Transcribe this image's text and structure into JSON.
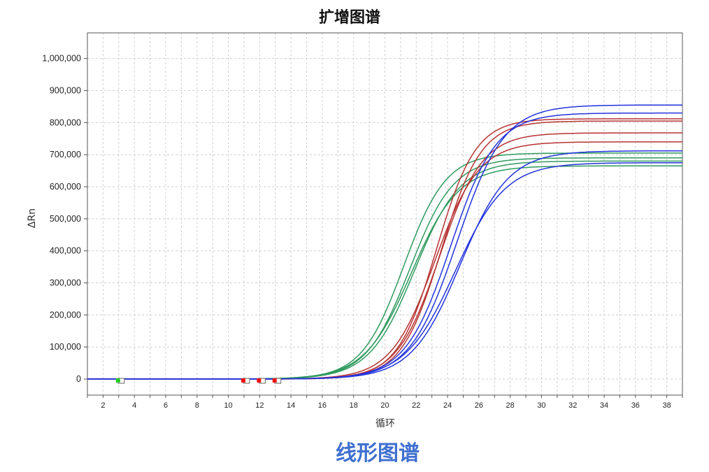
{
  "chart_data": {
    "type": "line",
    "title": "扩增图谱",
    "xlabel": "循环",
    "ylabel": "ΔRn",
    "xlim": [
      1,
      39
    ],
    "ylim": [
      -50000,
      1080000
    ],
    "x_ticks": [
      2,
      4,
      6,
      8,
      10,
      12,
      14,
      16,
      18,
      20,
      22,
      24,
      26,
      28,
      30,
      32,
      34,
      36,
      38
    ],
    "x_tick_labels": [
      "2",
      "4",
      "6",
      "8",
      "10",
      "12",
      "14",
      "16",
      "18",
      "20",
      "22",
      "24",
      "26",
      "28",
      "30",
      "32",
      "34",
      "36",
      "38"
    ],
    "y_ticks": [
      0,
      100000,
      200000,
      300000,
      400000,
      500000,
      600000,
      700000,
      800000,
      900000,
      1000000
    ],
    "y_tick_labels": [
      "0",
      "100,000",
      "200,000",
      "300,000",
      "400,000",
      "500,000",
      "600,000",
      "700,000",
      "800,000",
      "900,000",
      "1,000,000"
    ],
    "grid": true,
    "legend": "none",
    "colors": {
      "green": "#2e9a5e",
      "red": "#b83232",
      "blue": "#2233dd"
    },
    "series": [
      {
        "color": "#2e9a5e",
        "plateau": 705000,
        "midpoint": 21.2,
        "slope": 1.35
      },
      {
        "color": "#2e9a5e",
        "plateau": 690000,
        "midpoint": 21.6,
        "slope": 1.4
      },
      {
        "color": "#2e9a5e",
        "plateau": 680000,
        "midpoint": 21.9,
        "slope": 1.45
      },
      {
        "color": "#2e9a5e",
        "plateau": 665000,
        "midpoint": 21.7,
        "slope": 1.5
      },
      {
        "color": "#b83232",
        "plateau": 812000,
        "midpoint": 23.3,
        "slope": 1.25
      },
      {
        "color": "#b83232",
        "plateau": 805000,
        "midpoint": 23.6,
        "slope": 1.28
      },
      {
        "color": "#b83232",
        "plateau": 768000,
        "midpoint": 23.5,
        "slope": 1.35
      },
      {
        "color": "#b83232",
        "plateau": 740000,
        "midpoint": 23.2,
        "slope": 1.4
      },
      {
        "color": "#2233dd",
        "plateau": 855000,
        "midpoint": 24.6,
        "slope": 1.5
      },
      {
        "color": "#2233dd",
        "plateau": 830000,
        "midpoint": 24.2,
        "slope": 1.45
      },
      {
        "color": "#2233dd",
        "plateau": 712000,
        "midpoint": 24.8,
        "slope": 1.55
      },
      {
        "color": "#2233dd",
        "plateau": 675000,
        "midpoint": 24.5,
        "slope": 1.6
      }
    ],
    "baseline_markers": [
      {
        "cycle": 3,
        "color": "#22cc22"
      },
      {
        "cycle": 11,
        "color": "#ee1111"
      },
      {
        "cycle": 12,
        "color": "#ee1111"
      },
      {
        "cycle": 13,
        "color": "#ee1111"
      }
    ]
  },
  "caption": "线形图谱"
}
